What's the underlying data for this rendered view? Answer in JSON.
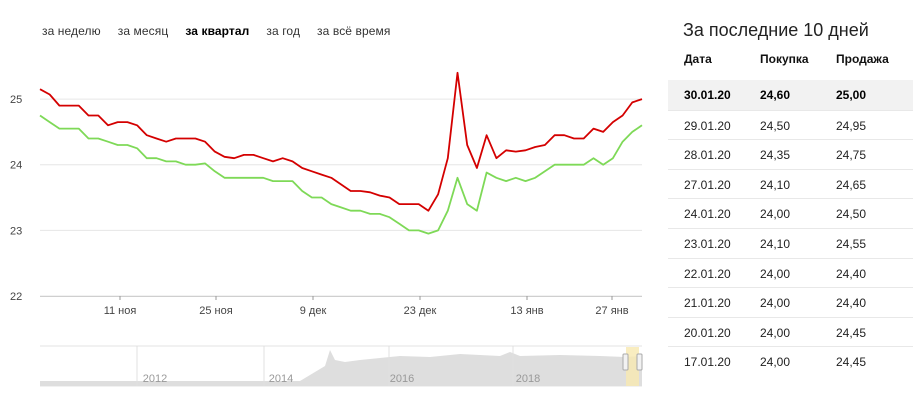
{
  "tabs": [
    {
      "label": "за неделю",
      "active": false
    },
    {
      "label": "за месяц",
      "active": false
    },
    {
      "label": "за квартал",
      "active": true
    },
    {
      "label": "за год",
      "active": false
    },
    {
      "label": "за всё время",
      "active": false
    }
  ],
  "table": {
    "title": "За последние 10 дней",
    "headers": [
      "Дата",
      "Покупка",
      "Продажа"
    ],
    "rows": [
      [
        "30.01.20",
        "24,60",
        "25,00"
      ],
      [
        "29.01.20",
        "24,50",
        "24,95"
      ],
      [
        "28.01.20",
        "24,35",
        "24,75"
      ],
      [
        "27.01.20",
        "24,10",
        "24,65"
      ],
      [
        "24.01.20",
        "24,00",
        "24,50"
      ],
      [
        "23.01.20",
        "24,10",
        "24,55"
      ],
      [
        "22.01.20",
        "24,00",
        "24,40"
      ],
      [
        "21.01.20",
        "24,00",
        "24,40"
      ],
      [
        "20.01.20",
        "24,00",
        "24,45"
      ],
      [
        "17.01.20",
        "24,00",
        "24,45"
      ]
    ]
  },
  "chart_data": {
    "type": "line",
    "ylim": [
      22,
      25.9
    ],
    "y_ticks": [
      "22",
      "23",
      "24",
      "25"
    ],
    "x_ticks": [
      "11 ноя",
      "25 ноя",
      "9 дек",
      "23 дек",
      "13 янв",
      "27 янв"
    ],
    "colors": {
      "sale": "#d40000",
      "buy": "#7ed957",
      "grid": "#e6e6e6"
    },
    "series": [
      {
        "key": "sale",
        "values": [
          25.15,
          25.07,
          24.9,
          24.9,
          24.9,
          24.75,
          24.75,
          24.6,
          24.65,
          24.65,
          24.6,
          24.45,
          24.4,
          24.35,
          24.4,
          24.4,
          24.4,
          24.35,
          24.2,
          24.12,
          24.1,
          24.15,
          24.15,
          24.1,
          24.05,
          24.1,
          24.05,
          23.95,
          23.9,
          23.85,
          23.8,
          23.7,
          23.6,
          23.6,
          23.58,
          23.53,
          23.5,
          23.4,
          23.4,
          23.4,
          23.3,
          23.55,
          24.1,
          25.4,
          24.3,
          23.95,
          24.45,
          24.1,
          24.22,
          24.2,
          24.22,
          24.27,
          24.3,
          24.45,
          24.45,
          24.4,
          24.4,
          24.55,
          24.5,
          24.65,
          24.75,
          24.95,
          25.0
        ]
      },
      {
        "key": "buy",
        "values": [
          24.75,
          24.65,
          24.55,
          24.55,
          24.55,
          24.4,
          24.4,
          24.35,
          24.3,
          24.3,
          24.25,
          24.1,
          24.1,
          24.05,
          24.05,
          24.0,
          24.0,
          24.02,
          23.9,
          23.8,
          23.8,
          23.8,
          23.8,
          23.8,
          23.75,
          23.75,
          23.75,
          23.6,
          23.5,
          23.5,
          23.4,
          23.35,
          23.3,
          23.3,
          23.25,
          23.25,
          23.2,
          23.1,
          23.0,
          23.0,
          22.95,
          23.0,
          23.3,
          23.8,
          23.4,
          23.3,
          23.88,
          23.8,
          23.75,
          23.8,
          23.75,
          23.8,
          23.9,
          24.0,
          24.0,
          24.0,
          24.0,
          24.1,
          24.0,
          24.1,
          24.35,
          24.5,
          24.6
        ]
      }
    ]
  },
  "navigator": {
    "years": [
      "2012",
      "2014",
      "2016",
      "2018"
    ]
  }
}
